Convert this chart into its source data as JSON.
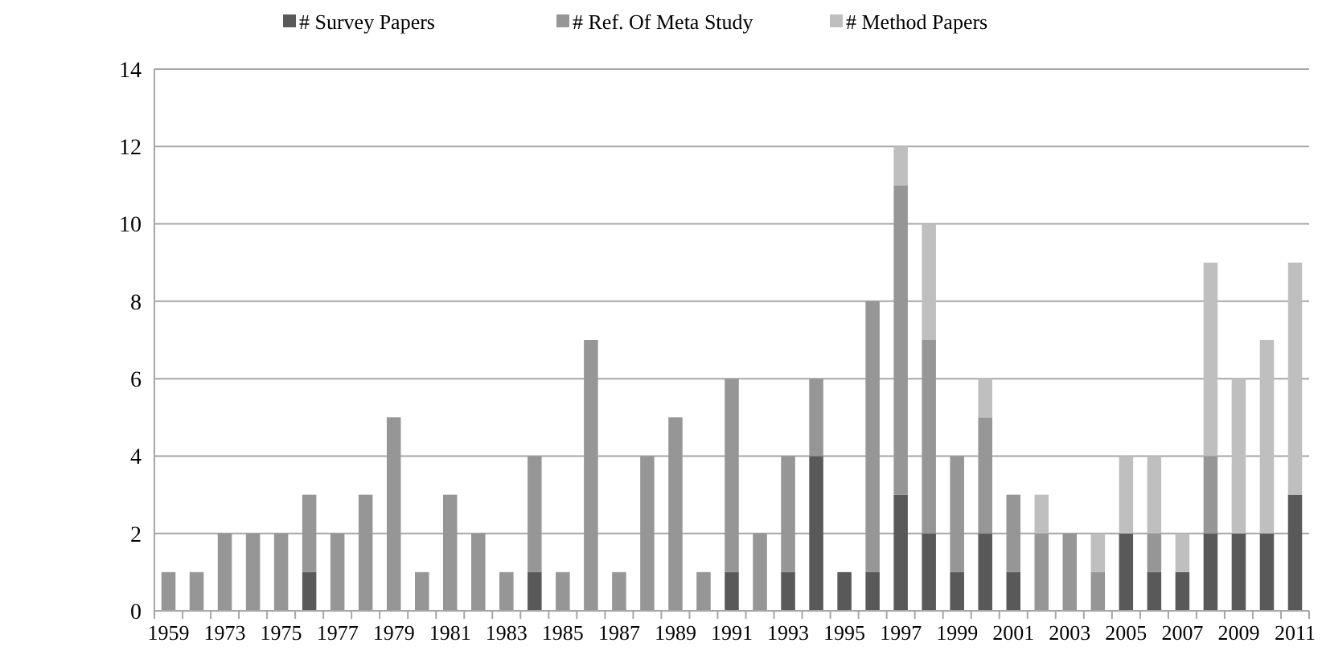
{
  "chart_data": {
    "type": "bar",
    "stacked": true,
    "categories": [
      "1959",
      null,
      "1973",
      null,
      "1975",
      null,
      "1977",
      null,
      "1979",
      null,
      "1981",
      null,
      "1983",
      null,
      "1985",
      null,
      "1987",
      null,
      "1989",
      null,
      "1991",
      null,
      "1993",
      null,
      "1995",
      null,
      "1997",
      null,
      "1999",
      null,
      "2001",
      null,
      "2003",
      null,
      "2005",
      null,
      "2007",
      null,
      "2009",
      null,
      "2011"
    ],
    "series": [
      {
        "name": "# Survey Papers",
        "color": "#595959",
        "values": [
          0,
          0,
          0,
          0,
          0,
          1,
          0,
          0,
          0,
          0,
          0,
          0,
          0,
          1,
          0,
          0,
          0,
          0,
          0,
          0,
          1,
          0,
          1,
          4,
          1,
          1,
          3,
          2,
          1,
          2,
          1,
          0,
          0,
          0,
          2,
          1,
          1,
          2,
          2,
          2,
          3
        ]
      },
      {
        "name": "# Ref. Of Meta Study",
        "color": "#969696",
        "values": [
          1,
          1,
          2,
          2,
          2,
          2,
          2,
          3,
          5,
          1,
          3,
          2,
          1,
          3,
          1,
          7,
          1,
          4,
          5,
          1,
          5,
          2,
          3,
          2,
          0,
          7,
          8,
          5,
          3,
          3,
          2,
          2,
          2,
          1,
          0,
          1,
          0,
          2,
          0,
          0,
          0
        ]
      },
      {
        "name": "# Method Papers",
        "color": "#bfbfbf",
        "values": [
          0,
          0,
          0,
          0,
          0,
          0,
          0,
          0,
          0,
          0,
          0,
          0,
          0,
          0,
          0,
          0,
          0,
          0,
          0,
          0,
          0,
          0,
          0,
          0,
          0,
          0,
          1,
          3,
          0,
          1,
          0,
          1,
          0,
          1,
          2,
          2,
          1,
          5,
          4,
          5,
          6
        ]
      }
    ],
    "ylim": [
      0,
      14
    ],
    "yticks": [
      0,
      2,
      4,
      6,
      8,
      10,
      12,
      14
    ],
    "grid": "y",
    "legend": "top"
  }
}
